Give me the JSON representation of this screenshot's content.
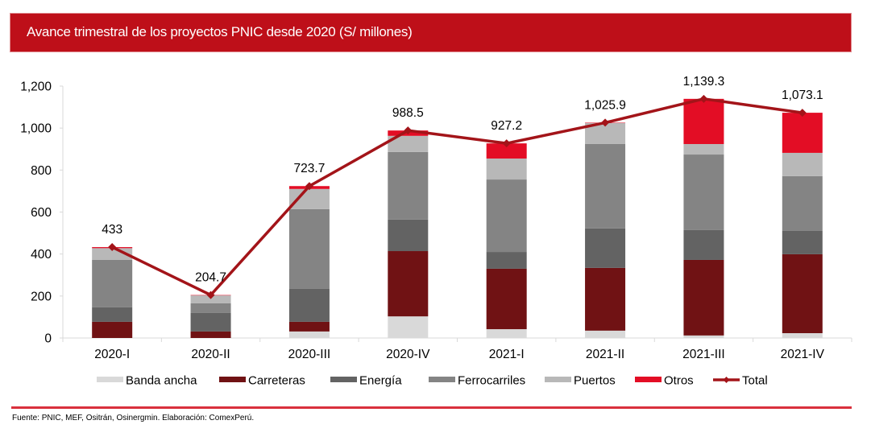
{
  "header": {
    "title": "Avance trimestral de los proyectos PNIC desde 2020 (S/ millones)"
  },
  "footer": {
    "source": "Fuente: PNIC, MEF, Ositrán, Osinergmin.  Elaboración:  ComexPerú."
  },
  "chart_data": {
    "type": "bar",
    "stacked": true,
    "title": "Avance trimestral de los proyectos PNIC desde 2020 (S/ millones)",
    "xlabel": "",
    "ylabel": "",
    "ylim": [
      0,
      1200
    ],
    "yticks": [
      0,
      200,
      400,
      600,
      800,
      1000,
      1200
    ],
    "ytick_labels": [
      "0",
      "200",
      "400",
      "600",
      "800",
      "1,000",
      "1,200"
    ],
    "grid": false,
    "legend_position": "bottom",
    "categories": [
      "2020-I",
      "2020-II",
      "2020-III",
      "2020-IV",
      "2021-I",
      "2021-II",
      "2021-III",
      "2021-IV"
    ],
    "series": [
      {
        "name": "Banda ancha",
        "color": "#d9d9d9",
        "values": [
          0,
          0,
          31,
          103,
          42,
          35,
          12,
          23
        ]
      },
      {
        "name": "Carreteras",
        "color": "#701214",
        "values": [
          77,
          31,
          46,
          311,
          288,
          299,
          360,
          376
        ]
      },
      {
        "name": "Energía",
        "color": "#636363",
        "values": [
          69,
          88,
          157,
          150,
          80,
          188,
          142,
          111
        ]
      },
      {
        "name": "Ferrocarriles",
        "color": "#848484",
        "values": [
          226,
          46,
          380,
          322,
          345,
          403,
          360,
          261
        ]
      },
      {
        "name": "Puertos",
        "color": "#b8b8b8",
        "values": [
          56,
          38,
          96,
          77,
          100,
          100,
          50,
          111
        ]
      },
      {
        "name": "Otros",
        "color": "#e30d25",
        "values": [
          5,
          1.7,
          13.7,
          25.5,
          72.2,
          0.9,
          215.3,
          191.1
        ]
      }
    ],
    "line": {
      "name": "Total",
      "color": "#a31419",
      "values": [
        433,
        204.7,
        723.7,
        988.5,
        927.2,
        1025.9,
        1139.3,
        1073.1
      ],
      "labels": [
        "433",
        "204.7",
        "723.7",
        "988.5",
        "927.2",
        "1,025.9",
        "1,139.3",
        "1,073.1"
      ]
    }
  }
}
